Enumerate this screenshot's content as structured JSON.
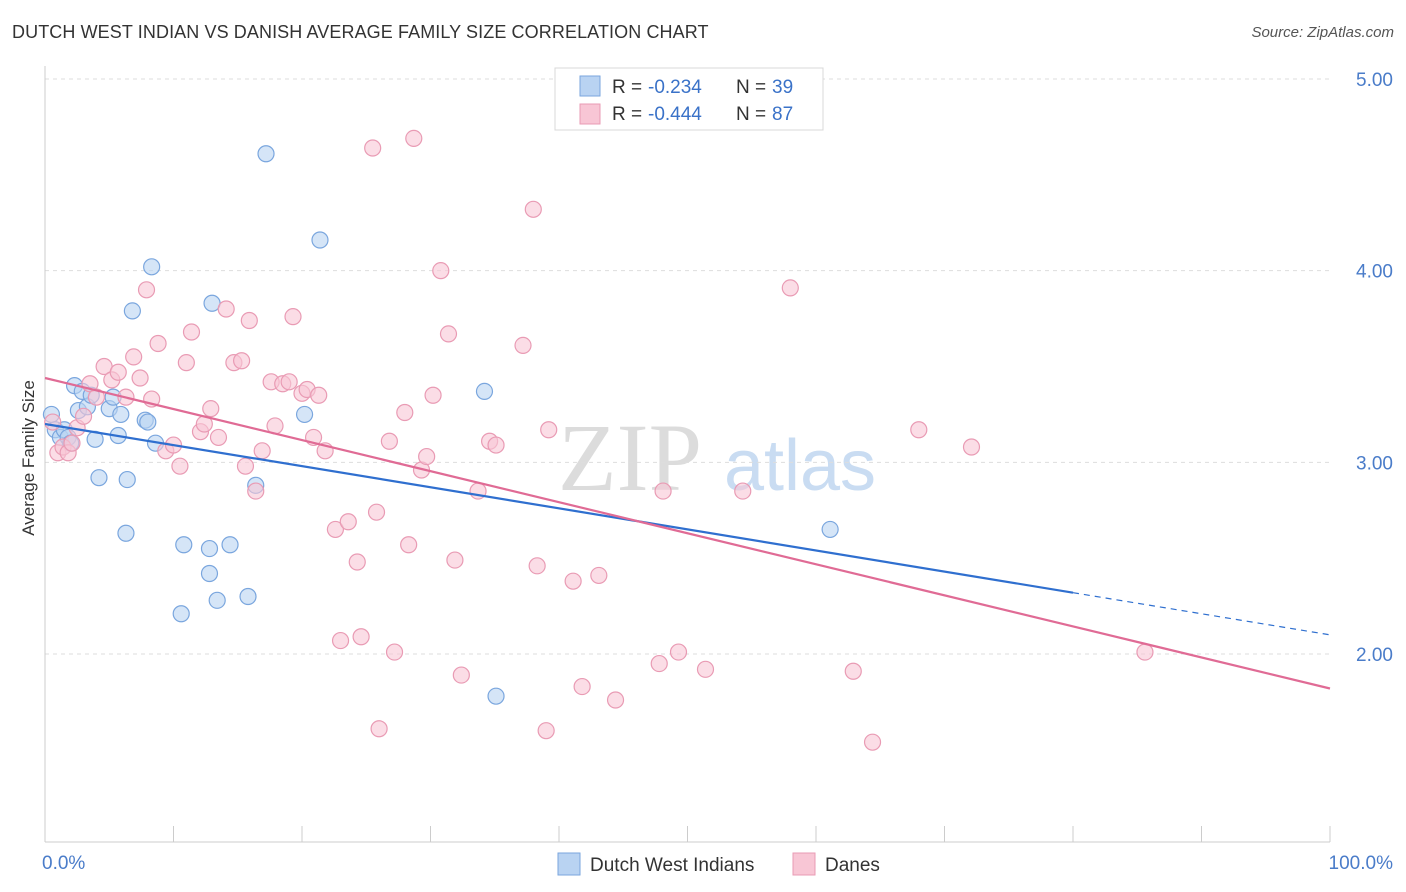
{
  "title": "DUTCH WEST INDIAN VS DANISH AVERAGE FAMILY SIZE CORRELATION CHART",
  "source": "Source: ZipAtlas.com",
  "watermark": {
    "zip": "ZIP",
    "atlas": "atlas"
  },
  "colors": {
    "blue_fill": "#b9d3f2",
    "blue_stroke": "#7aa6de",
    "blue_line": "#2f6fcf",
    "pink_fill": "#f8c6d5",
    "pink_stroke": "#e99bb4",
    "pink_line": "#e06b95",
    "tick": "#4a7cc9",
    "grid": "#dddddd"
  },
  "legend": {
    "items": [
      {
        "r_label": "R = ",
        "r_value": "-0.234",
        "n_label": "N = ",
        "n_value": "39"
      },
      {
        "r_label": "R = ",
        "r_value": "-0.444",
        "n_label": "N = ",
        "n_value": "87"
      }
    ]
  },
  "chart_data": {
    "type": "scatter",
    "title": "DUTCH WEST INDIAN VS DANISH AVERAGE FAMILY SIZE CORRELATION CHART",
    "xlabel": "",
    "ylabel": "Average Family Size",
    "xlim": [
      0,
      100
    ],
    "ylim": [
      1.05,
      5.1
    ],
    "y_ticks": [
      2.0,
      3.0,
      4.0,
      5.0
    ],
    "y_tick_labels": [
      "2.00",
      "3.00",
      "4.00",
      "5.00"
    ],
    "x_tick_labels": [
      "0.0%",
      "100.0%"
    ],
    "grid": true,
    "legend_position": "top-center",
    "series": [
      {
        "name": "Dutch West Indians",
        "r": -0.234,
        "n": 39,
        "trend": {
          "x0": 0,
          "y0": 3.2,
          "x1": 80,
          "y1": 2.32,
          "dashed_to_x": 100,
          "dashed_to_y": 2.1
        },
        "points": [
          [
            0.5,
            3.25
          ],
          [
            0.8,
            3.17
          ],
          [
            1.2,
            3.13
          ],
          [
            1.5,
            3.17
          ],
          [
            1.8,
            3.13
          ],
          [
            2.0,
            3.1
          ],
          [
            2.3,
            3.4
          ],
          [
            2.6,
            3.27
          ],
          [
            2.9,
            3.37
          ],
          [
            3.3,
            3.29
          ],
          [
            3.6,
            3.35
          ],
          [
            3.9,
            3.12
          ],
          [
            4.2,
            2.92
          ],
          [
            5.0,
            3.28
          ],
          [
            5.3,
            3.34
          ],
          [
            5.7,
            3.14
          ],
          [
            5.9,
            3.25
          ],
          [
            6.3,
            2.63
          ],
          [
            6.4,
            2.91
          ],
          [
            6.8,
            3.79
          ],
          [
            7.8,
            3.22
          ],
          [
            8.0,
            3.21
          ],
          [
            8.3,
            4.02
          ],
          [
            8.6,
            3.1
          ],
          [
            10.6,
            2.21
          ],
          [
            10.8,
            2.57
          ],
          [
            12.8,
            2.42
          ],
          [
            12.8,
            2.55
          ],
          [
            13.0,
            3.83
          ],
          [
            13.4,
            2.28
          ],
          [
            14.4,
            2.57
          ],
          [
            15.8,
            2.3
          ],
          [
            16.4,
            2.88
          ],
          [
            17.2,
            4.61
          ],
          [
            21.4,
            4.16
          ],
          [
            34.2,
            3.37
          ],
          [
            35.1,
            1.78
          ],
          [
            61.1,
            2.65
          ],
          [
            20.2,
            3.25
          ]
        ]
      },
      {
        "name": "Danes",
        "r": -0.444,
        "n": 87,
        "trend": {
          "x0": 0,
          "y0": 3.44,
          "x1": 100,
          "y1": 1.82
        },
        "points": [
          [
            0.6,
            3.21
          ],
          [
            1.0,
            3.05
          ],
          [
            1.4,
            3.08
          ],
          [
            1.8,
            3.05
          ],
          [
            2.1,
            3.1
          ],
          [
            2.5,
            3.18
          ],
          [
            3.0,
            3.24
          ],
          [
            3.5,
            3.41
          ],
          [
            4.0,
            3.34
          ],
          [
            4.6,
            3.5
          ],
          [
            5.2,
            3.43
          ],
          [
            5.7,
            3.47
          ],
          [
            6.3,
            3.34
          ],
          [
            6.9,
            3.55
          ],
          [
            7.4,
            3.44
          ],
          [
            7.9,
            3.9
          ],
          [
            8.3,
            3.33
          ],
          [
            8.8,
            3.62
          ],
          [
            9.4,
            3.06
          ],
          [
            10.0,
            3.09
          ],
          [
            10.5,
            2.98
          ],
          [
            11.0,
            3.52
          ],
          [
            11.4,
            3.68
          ],
          [
            12.1,
            3.16
          ],
          [
            12.4,
            3.2
          ],
          [
            12.9,
            3.28
          ],
          [
            13.5,
            3.13
          ],
          [
            14.1,
            3.8
          ],
          [
            14.7,
            3.52
          ],
          [
            15.3,
            3.53
          ],
          [
            15.6,
            2.98
          ],
          [
            15.9,
            3.74
          ],
          [
            16.4,
            2.85
          ],
          [
            16.9,
            3.06
          ],
          [
            17.6,
            3.42
          ],
          [
            17.9,
            3.19
          ],
          [
            18.5,
            3.41
          ],
          [
            19.0,
            3.42
          ],
          [
            19.3,
            3.76
          ],
          [
            20.0,
            3.36
          ],
          [
            20.4,
            3.38
          ],
          [
            20.9,
            3.13
          ],
          [
            21.3,
            3.35
          ],
          [
            21.8,
            3.06
          ],
          [
            22.6,
            2.65
          ],
          [
            23.0,
            2.07
          ],
          [
            23.6,
            2.69
          ],
          [
            24.3,
            2.48
          ],
          [
            24.6,
            2.09
          ],
          [
            25.5,
            4.64
          ],
          [
            25.8,
            2.74
          ],
          [
            26.0,
            1.61
          ],
          [
            26.8,
            3.11
          ],
          [
            27.2,
            2.01
          ],
          [
            28.0,
            3.26
          ],
          [
            28.3,
            2.57
          ],
          [
            28.7,
            4.69
          ],
          [
            29.3,
            2.96
          ],
          [
            29.7,
            3.03
          ],
          [
            30.2,
            3.35
          ],
          [
            30.8,
            4.0
          ],
          [
            31.4,
            3.67
          ],
          [
            31.9,
            2.49
          ],
          [
            32.4,
            1.89
          ],
          [
            33.7,
            2.85
          ],
          [
            34.6,
            3.11
          ],
          [
            35.1,
            3.09
          ],
          [
            37.2,
            3.61
          ],
          [
            38.0,
            4.32
          ],
          [
            38.3,
            2.46
          ],
          [
            39.0,
            1.6
          ],
          [
            39.2,
            3.17
          ],
          [
            41.1,
            2.38
          ],
          [
            41.8,
            1.83
          ],
          [
            43.1,
            2.41
          ],
          [
            44.4,
            1.76
          ],
          [
            47.8,
            1.95
          ],
          [
            48.1,
            2.85
          ],
          [
            49.3,
            2.01
          ],
          [
            51.4,
            1.92
          ],
          [
            54.3,
            2.85
          ],
          [
            58.0,
            3.91
          ],
          [
            62.9,
            1.91
          ],
          [
            64.4,
            1.54
          ],
          [
            68.0,
            3.17
          ],
          [
            72.1,
            3.08
          ],
          [
            85.6,
            2.01
          ]
        ]
      }
    ]
  }
}
